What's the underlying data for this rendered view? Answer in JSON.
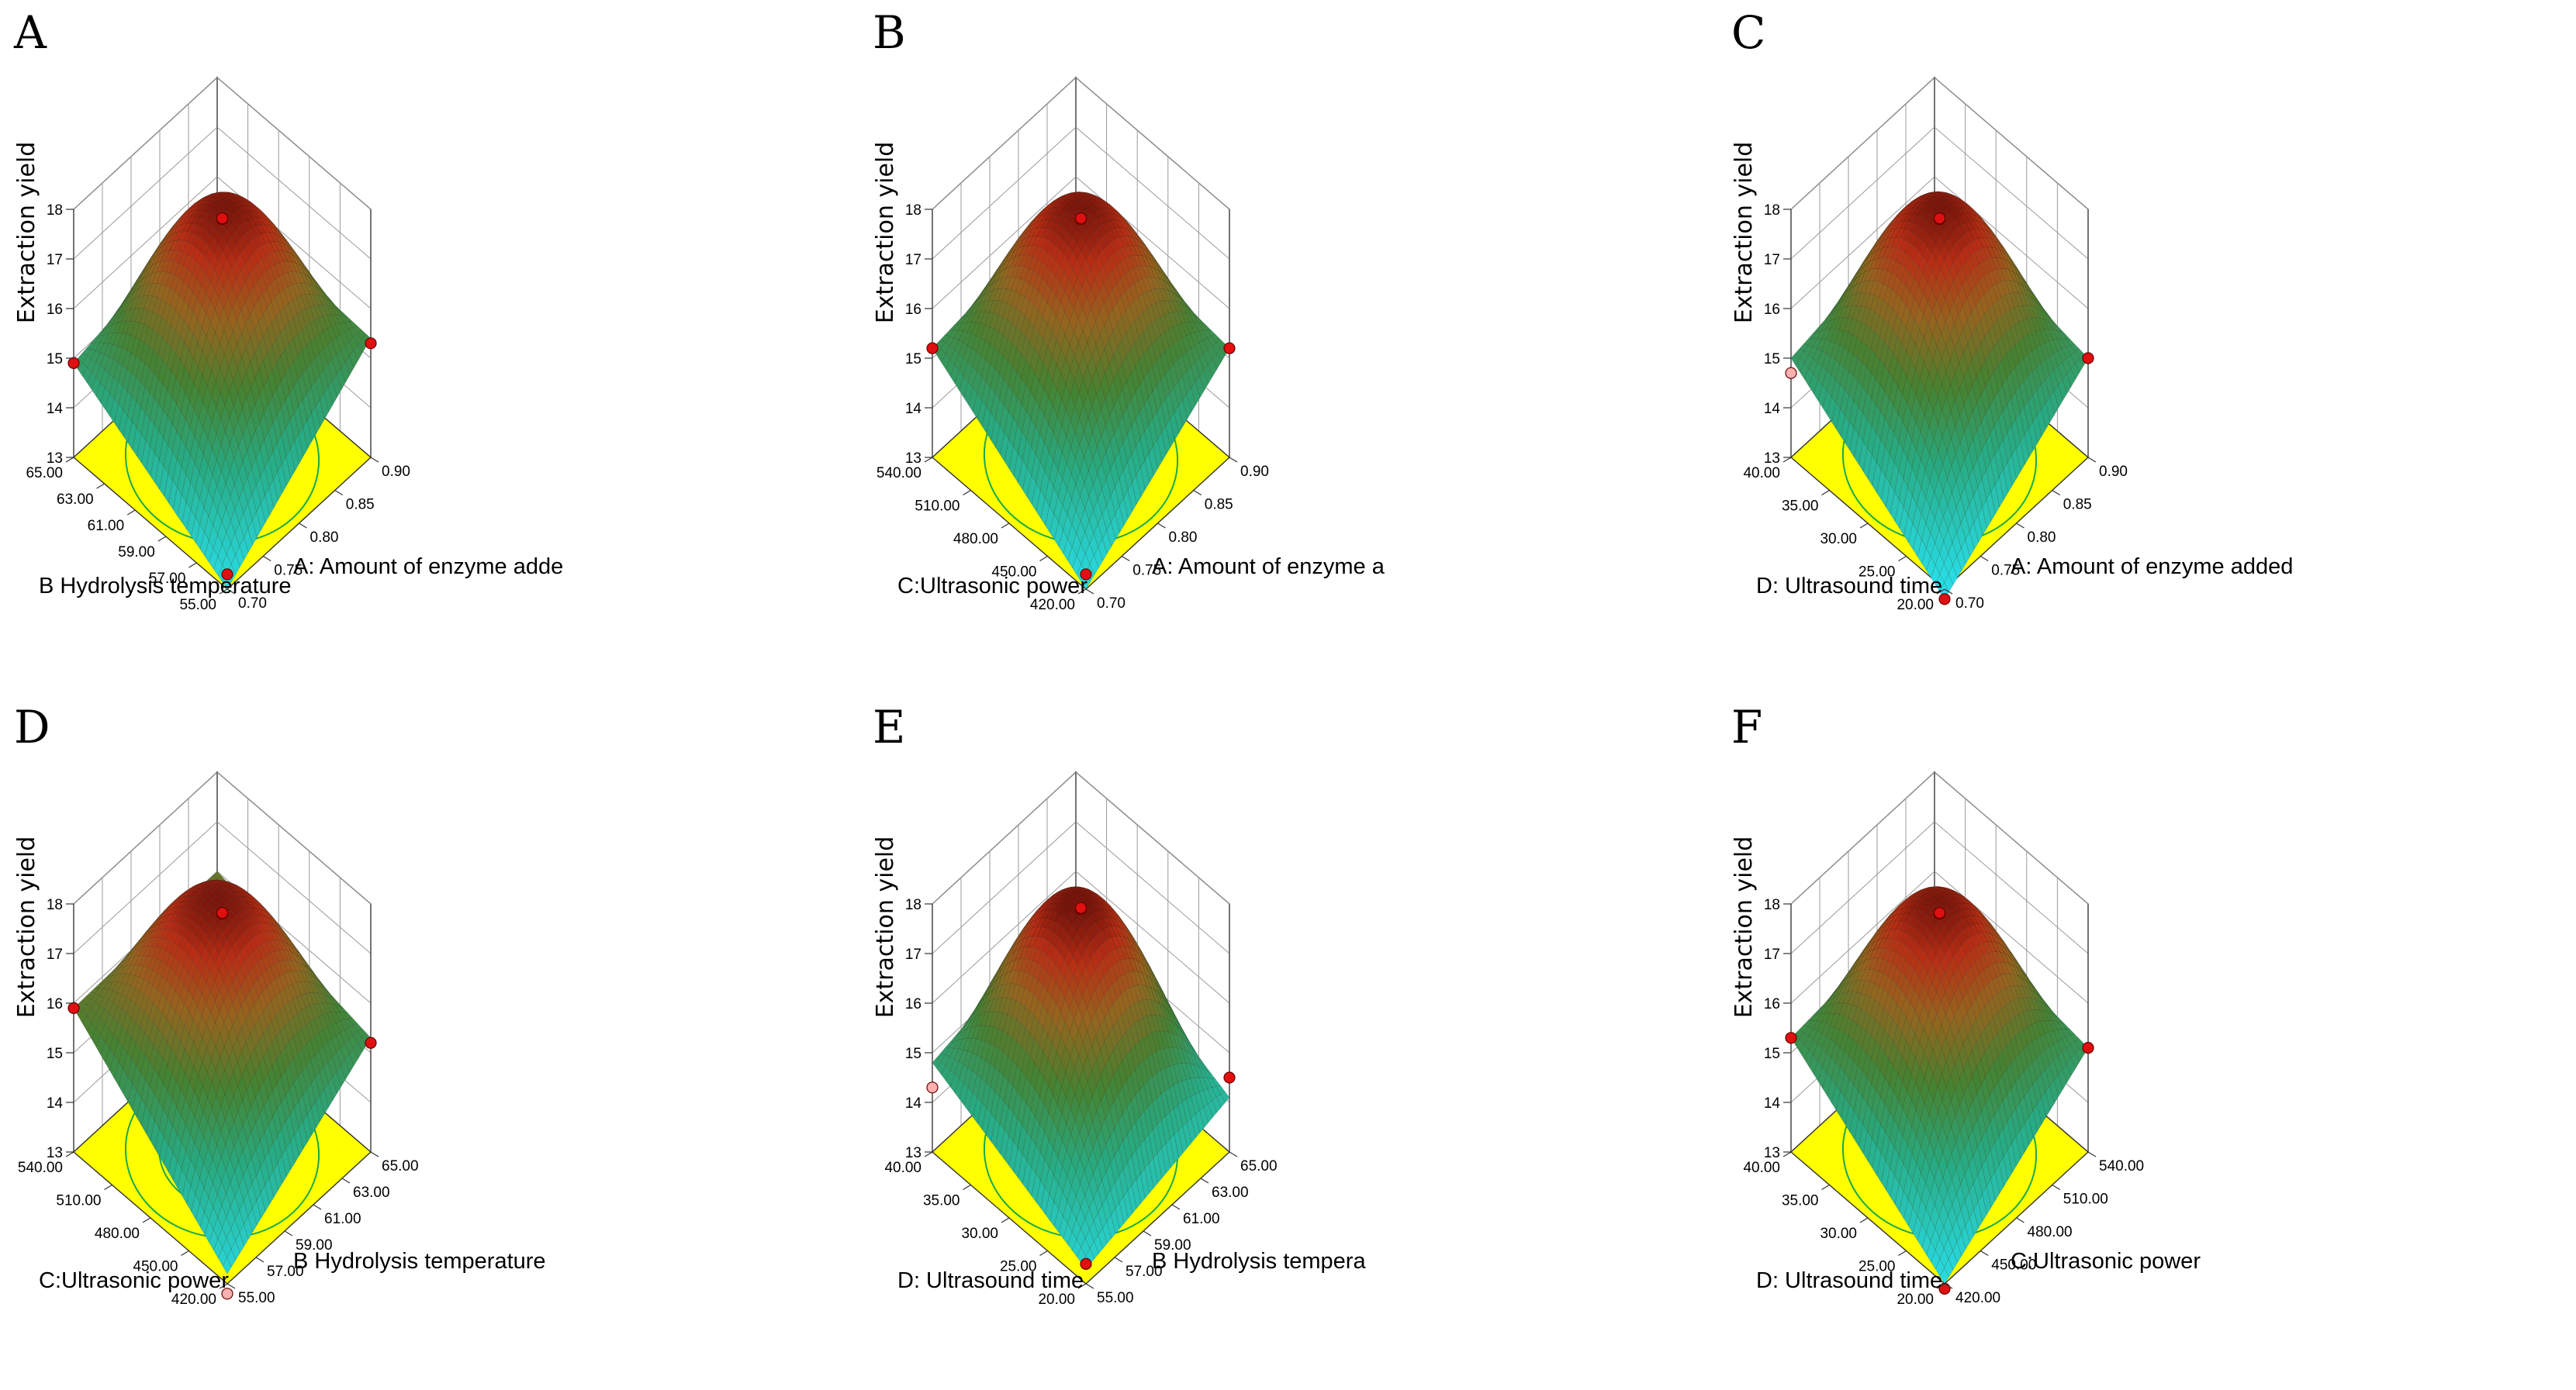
{
  "chart_data": [
    {
      "panel": "A",
      "type": "surface",
      "zlabel": "Extraction yield",
      "zlim": [
        13,
        18
      ],
      "zticks": [
        "13",
        "14",
        "15",
        "16",
        "17",
        "18"
      ],
      "xlabel": "A: Amount of enzyme adde",
      "xticks": [
        "0.70",
        "0.75",
        "0.80",
        "0.85",
        "0.90"
      ],
      "ylabel": "B Hydrolysis temperature",
      "yticks": [
        "55.00",
        "57.00",
        "59.00",
        "61.00",
        "63.00",
        "65.00"
      ],
      "corners": {
        "front": 13.0,
        "right": 15.4,
        "left": 14.9,
        "back": 15.6
      },
      "peak": 17.7,
      "points": [
        17.8,
        17.6,
        15.3,
        14.9,
        13.3
      ]
    },
    {
      "panel": "B",
      "type": "surface",
      "zlabel": "Extraction yield",
      "zlim": [
        13,
        18
      ],
      "zticks": [
        "13",
        "14",
        "15",
        "16",
        "17",
        "18"
      ],
      "xlabel": "A: Amount of enzyme a",
      "xticks": [
        "0.70",
        "0.75",
        "0.80",
        "0.85",
        "0.90"
      ],
      "ylabel": "C:Ultrasonic power",
      "yticks": [
        "420.00",
        "450.00",
        "480.00",
        "510.00",
        "540.00"
      ],
      "corners": {
        "front": 13.0,
        "right": 15.2,
        "left": 15.2,
        "back": 15.6
      },
      "peak": 17.7,
      "points": [
        17.8,
        17.6,
        15.2,
        15.2,
        13.3
      ]
    },
    {
      "panel": "C",
      "type": "surface",
      "zlabel": "Extraction yield",
      "zlim": [
        13,
        18
      ],
      "zticks": [
        "13",
        "14",
        "15",
        "16",
        "17",
        "18"
      ],
      "xlabel": "A: Amount of enzyme added",
      "xticks": [
        "0.70",
        "0.75",
        "0.80",
        "0.85",
        "0.90"
      ],
      "ylabel": "D: Ultrasound time",
      "yticks": [
        "20.00",
        "25.00",
        "30.00",
        "35.00",
        "40.00"
      ],
      "corners": {
        "front": 12.8,
        "right": 15.0,
        "left": 15.0,
        "back": 15.6
      },
      "peak": 17.7,
      "points": [
        17.8,
        17.6,
        15.0,
        14.7,
        12.8
      ]
    },
    {
      "panel": "D",
      "type": "surface",
      "zlabel": "Extraction yield",
      "zlim": [
        13,
        18
      ],
      "zticks": [
        "13",
        "14",
        "15",
        "16",
        "17",
        "18"
      ],
      "xlabel": "B Hydrolysis temperature",
      "xticks": [
        "55.00",
        "57.00",
        "59.00",
        "61.00",
        "63.00",
        "65.00"
      ],
      "ylabel": "C:Ultrasonic power",
      "yticks": [
        "420.00",
        "450.00",
        "480.00",
        "510.00",
        "540.00"
      ],
      "corners": {
        "front": 13.2,
        "right": 15.3,
        "left": 15.9,
        "back": 16.0
      },
      "peak": 17.7,
      "points": [
        17.8,
        17.6,
        15.2,
        15.9,
        12.8
      ]
    },
    {
      "panel": "E",
      "type": "surface",
      "zlabel": "Extraction yield",
      "zlim": [
        13,
        18
      ],
      "zticks": [
        "13",
        "14",
        "15",
        "16",
        "17",
        "18"
      ],
      "xlabel": "B Hydrolysis tempera",
      "xticks": [
        "55.00",
        "57.00",
        "59.00",
        "61.00",
        "63.00",
        "65.00"
      ],
      "ylabel": "D: Ultrasound time",
      "yticks": [
        "20.00",
        "25.00",
        "30.00",
        "35.00",
        "40.00"
      ],
      "corners": {
        "front": 13.3,
        "right": 14.1,
        "left": 14.8,
        "back": 15.5
      },
      "peak": 17.8,
      "points": [
        17.9,
        17.7,
        14.5,
        14.3,
        13.4
      ]
    },
    {
      "panel": "F",
      "type": "surface",
      "zlabel": "Extraction yield",
      "zlim": [
        13,
        18
      ],
      "zticks": [
        "13",
        "14",
        "15",
        "16",
        "17",
        "18"
      ],
      "xlabel": "C:Ultrasonic power",
      "xticks": [
        "420.00",
        "450.00",
        "480.00",
        "510.00",
        "540.00"
      ],
      "ylabel": "D: Ultrasound time",
      "yticks": [
        "20.00",
        "25.00",
        "30.00",
        "35.00",
        "40.00"
      ],
      "corners": {
        "front": 13.0,
        "right": 15.1,
        "left": 15.3,
        "back": 15.6
      },
      "peak": 17.7,
      "points": [
        17.8,
        17.6,
        15.1,
        15.3,
        12.9
      ]
    }
  ]
}
